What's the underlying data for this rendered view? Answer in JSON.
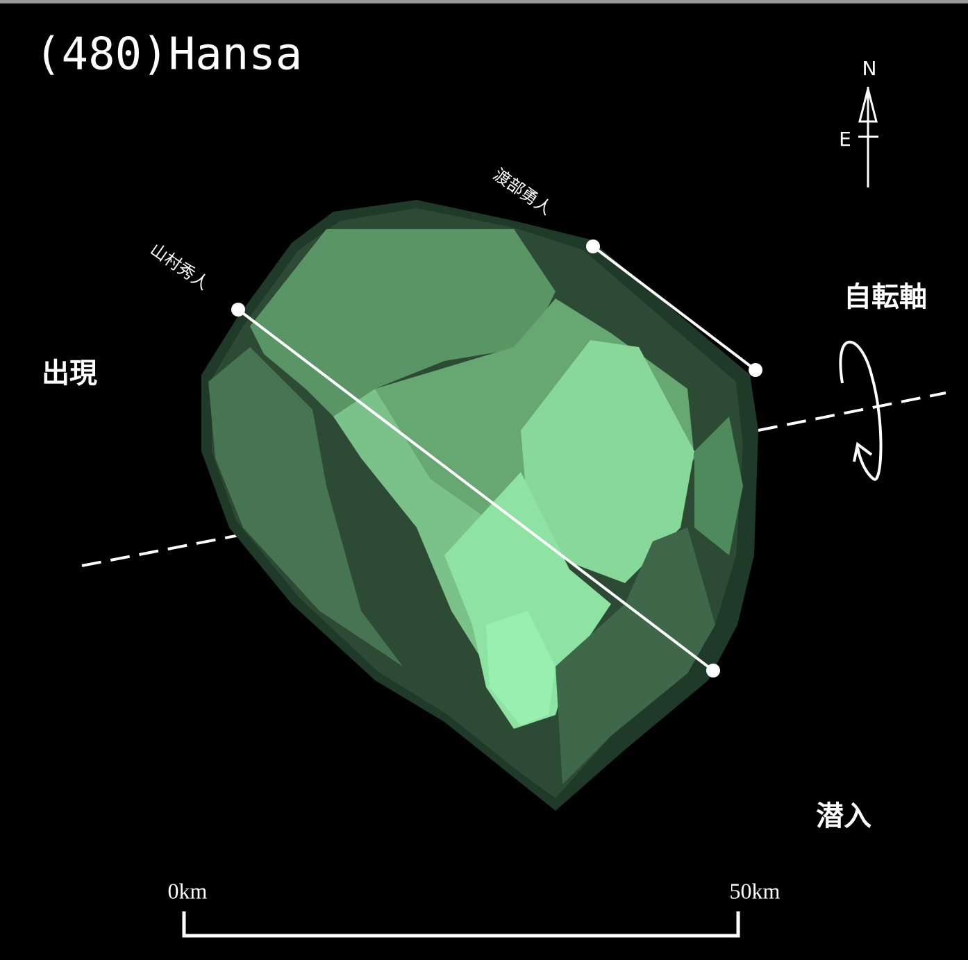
{
  "title": "(480)Hansa",
  "compass": {
    "north": "N",
    "east": "E"
  },
  "observers": [
    "山村秀人",
    "渡部勇人"
  ],
  "rotation_axis": "自転軸",
  "reappearance": "出現",
  "disappearance": "潜入",
  "scale": {
    "start": "0km",
    "end": "50km"
  }
}
